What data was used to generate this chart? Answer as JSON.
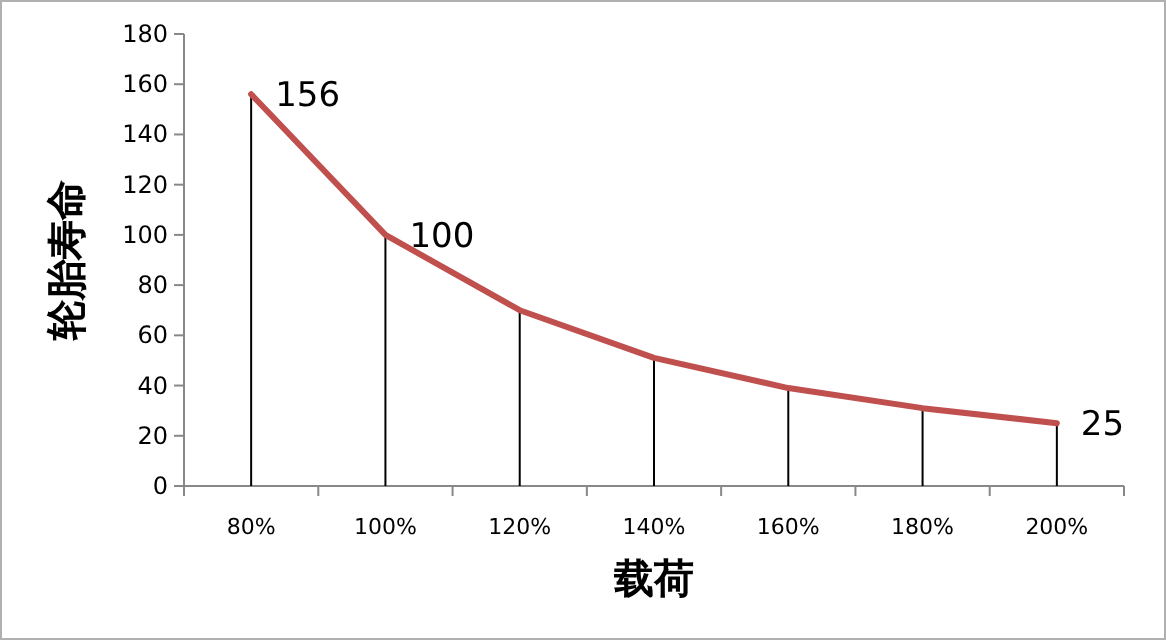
{
  "chart_data": {
    "type": "line",
    "xlabel": "载荷",
    "ylabel": "轮胎寿命",
    "categories": [
      "80%",
      "100%",
      "120%",
      "140%",
      "160%",
      "180%",
      "200%"
    ],
    "series": [
      {
        "type": "bar",
        "color": "#000000",
        "values": [
          156,
          100,
          70,
          51,
          39,
          31,
          25
        ]
      },
      {
        "color": "#c0504d",
        "values": [
          156,
          100,
          70,
          51,
          39,
          31,
          25
        ],
        "value_labels": [
          "156",
          "100",
          null,
          null,
          null,
          null,
          "25"
        ]
      }
    ],
    "ylim": [
      0,
      180
    ],
    "yticks": [
      0,
      20,
      40,
      60,
      80,
      100,
      120,
      140,
      160,
      180
    ],
    "grid": false,
    "marker": "none",
    "line_style": "solid"
  }
}
